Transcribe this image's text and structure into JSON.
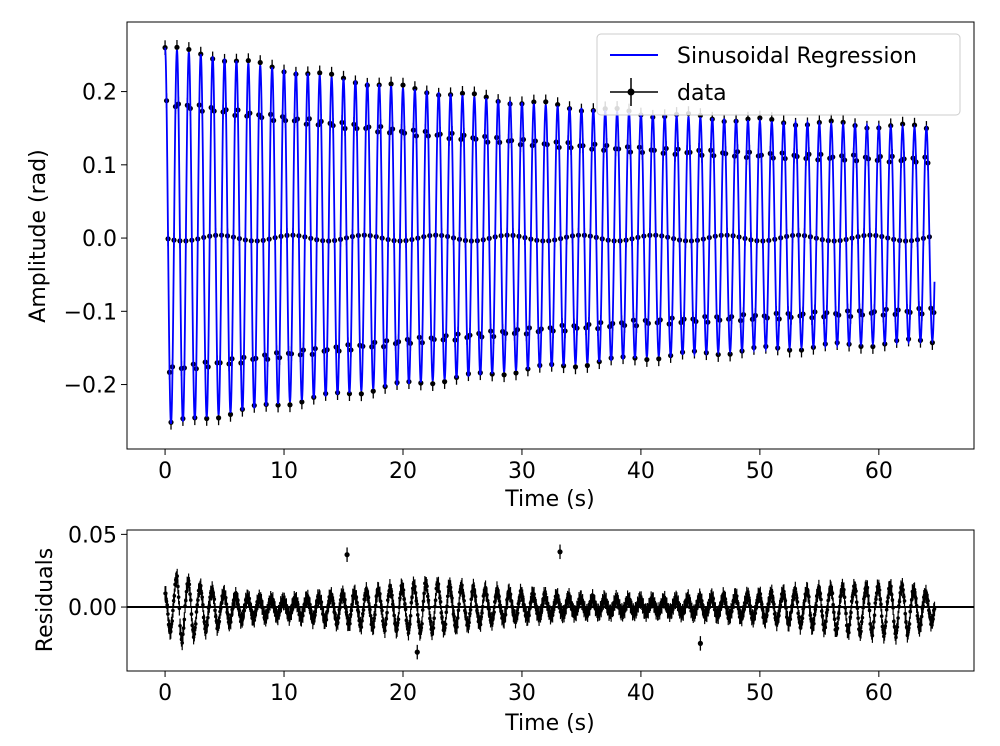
{
  "chart_data": [
    {
      "type": "line",
      "panel": "main",
      "xlabel": "Time (s)",
      "ylabel": "Amplitude (rad)",
      "xlim": [
        -3.2,
        68.0
      ],
      "ylim": [
        -0.288,
        0.295
      ],
      "xticks": [
        0,
        10,
        20,
        30,
        40,
        50,
        60
      ],
      "xtick_labels": [
        "0",
        "10",
        "20",
        "30",
        "40",
        "50",
        "60"
      ],
      "yticks": [
        0.2,
        0.1,
        0.0,
        -0.1,
        -0.2
      ],
      "ytick_labels": [
        "0.2",
        "0.1",
        "0.0",
        "−0.1",
        "−0.2"
      ],
      "legend": {
        "placement": "top-right",
        "entries": [
          "Sinusoidal Regression",
          "data"
        ]
      },
      "model": {
        "name": "Sinusoidal Regression",
        "color": "#0000ff",
        "period_s": 1.0,
        "phase_s": 0.0,
        "envelope_pos": {
          "t": [
            0,
            10,
            20,
            30,
            40,
            50,
            64.7
          ],
          "amp": [
            0.26,
            0.23,
            0.205,
            0.185,
            0.17,
            0.16,
            0.15
          ]
        },
        "envelope_neg": {
          "t": [
            0,
            10,
            20,
            30,
            40,
            50,
            64.7
          ],
          "amp": [
            0.255,
            0.225,
            0.2,
            0.18,
            0.163,
            0.152,
            0.14
          ]
        }
      },
      "data_series": {
        "name": "data",
        "color": "#000000",
        "t_start": 0.0,
        "t_end": 64.7,
        "sample_interval_s": 0.125,
        "error_bar_rad": 0.01
      }
    },
    {
      "type": "scatter",
      "panel": "residuals",
      "xlabel": "Time (s)",
      "ylabel": "Residuals",
      "xlim": [
        -3.2,
        68.0
      ],
      "ylim": [
        -0.044,
        0.053
      ],
      "xticks": [
        0,
        10,
        20,
        30,
        40,
        50,
        60
      ],
      "xtick_labels": [
        "0",
        "10",
        "20",
        "30",
        "40",
        "50",
        "60"
      ],
      "yticks": [
        0.05,
        0.0
      ],
      "ytick_labels": [
        "0.05",
        "0.00"
      ],
      "zero_line": 0.0,
      "envelope": {
        "t": [
          0,
          1,
          3,
          6,
          10,
          15,
          22,
          28,
          35,
          42,
          50,
          57,
          62,
          64.7
        ],
        "amp": [
          0.012,
          0.027,
          0.018,
          0.01,
          0.006,
          0.012,
          0.02,
          0.012,
          0.006,
          0.005,
          0.01,
          0.018,
          0.02,
          0.01
        ]
      },
      "outliers": [
        {
          "t": 15.3,
          "r": 0.036
        },
        {
          "t": 21.2,
          "r": -0.031
        },
        {
          "t": 33.2,
          "r": 0.038
        },
        {
          "t": 45.0,
          "r": -0.025
        }
      ],
      "error_bar": 0.005
    }
  ]
}
